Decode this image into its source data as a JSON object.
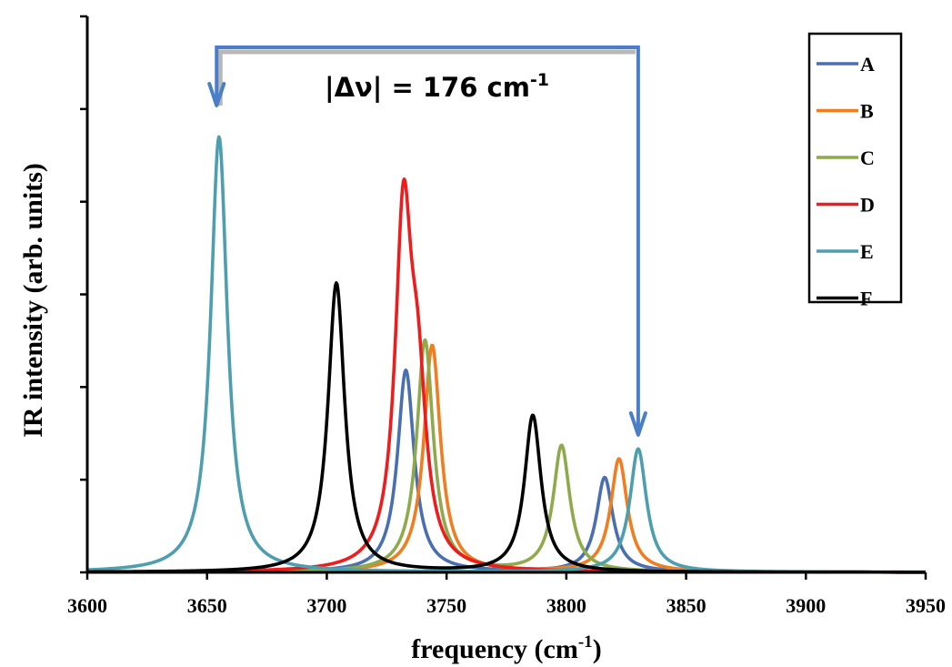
{
  "chart_data": {
    "type": "line",
    "title": "",
    "xlabel": "frequency (cm",
    "xlabel_sup": "-1",
    "xlabel_end": ")",
    "ylabel": "IR intensity (arb. units)",
    "xlim": [
      3600,
      3950
    ],
    "ylim": [
      0,
      6
    ],
    "xticks": [
      3600,
      3650,
      3700,
      3750,
      3800,
      3850,
      3900,
      3950
    ],
    "grid": false,
    "legend_position": "top-right",
    "series": [
      {
        "name": "A",
        "color": "#4a6fb0",
        "peaks": [
          {
            "x": 3733,
            "h": 2.18
          },
          {
            "x": 3816,
            "h": 1.02
          }
        ]
      },
      {
        "name": "B",
        "color": "#f07d20",
        "peaks": [
          {
            "x": 3744,
            "h": 2.45
          },
          {
            "x": 3822,
            "h": 1.22
          }
        ]
      },
      {
        "name": "C",
        "color": "#8faa4a",
        "peaks": [
          {
            "x": 3741,
            "h": 2.5
          },
          {
            "x": 3798,
            "h": 1.36
          }
        ]
      },
      {
        "name": "D",
        "color": "#ee1c1c",
        "peaks": [
          {
            "x": 3732,
            "h": 3.7
          },
          {
            "x": 3738,
            "h": 1.6
          }
        ]
      },
      {
        "name": "E",
        "color": "#4d9eae",
        "peaks": [
          {
            "x": 3655,
            "h": 4.7
          },
          {
            "x": 3830,
            "h": 1.33
          }
        ]
      },
      {
        "name": "F",
        "color": "#000000",
        "peaks": [
          {
            "x": 3704,
            "h": 3.12
          },
          {
            "x": 3786,
            "h": 1.69
          }
        ]
      }
    ],
    "annotation": {
      "text": "|Δν| = 176 cm",
      "sup": "-1",
      "from_x": 3654,
      "to_x": 3830,
      "color": "#4a7fc8"
    }
  }
}
